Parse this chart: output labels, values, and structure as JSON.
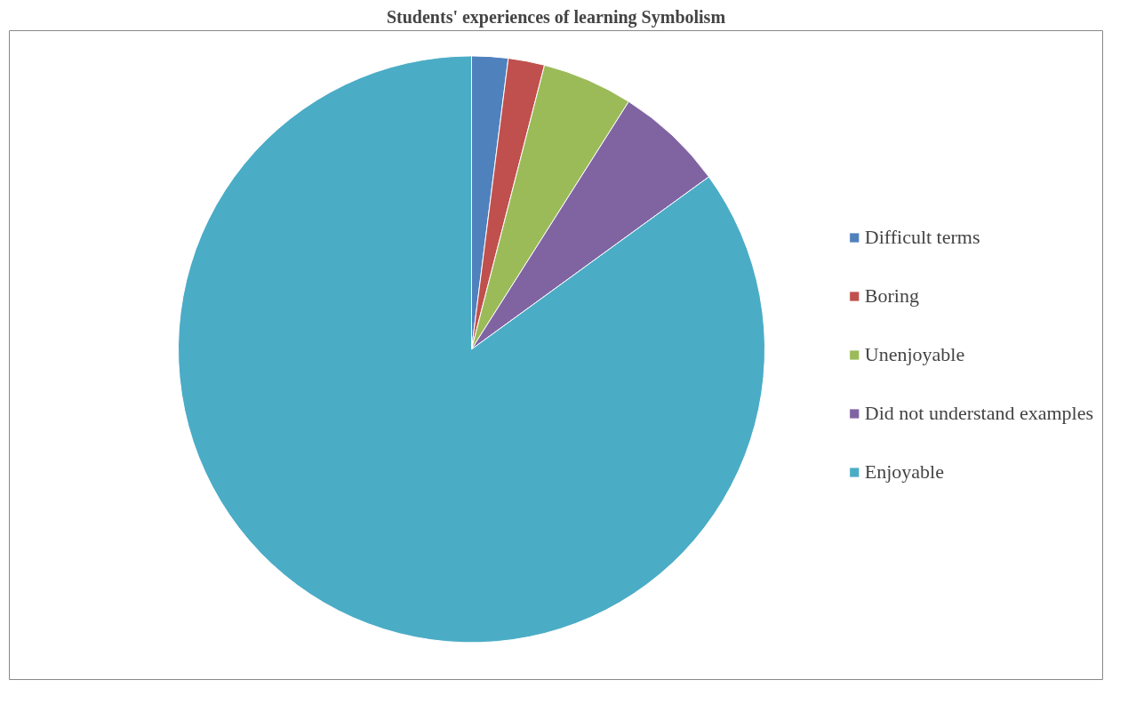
{
  "chart_data": {
    "type": "pie",
    "title": "Students' experiences of learning Symbolism",
    "categories": [
      "Difficult terms",
      "Boring",
      "Unenjoyable",
      "Did not understand examples",
      "Enjoyable"
    ],
    "values": [
      2,
      2,
      5,
      6,
      85
    ],
    "colors": [
      "#4f81bd",
      "#c0504d",
      "#9bbb59",
      "#8064a2",
      "#4bacc6"
    ],
    "legend": "right"
  }
}
